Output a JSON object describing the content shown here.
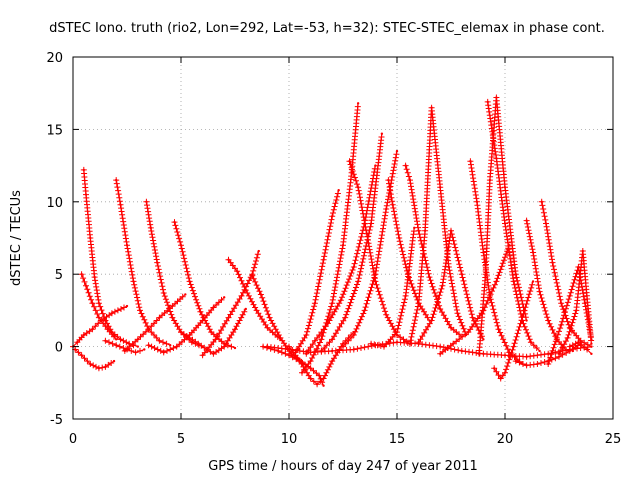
{
  "chart_data": {
    "type": "scatter",
    "title": "dSTEC Iono. truth (rio2, Lon=292, Lat=-53, h=32): STEC-STEC_elemax in phase cont.",
    "xlabel": "GPS time / hours of day 247 of year 2011",
    "ylabel": "dSTEC  / TECUs",
    "xlim": [
      0,
      25
    ],
    "ylim": [
      -5,
      20
    ],
    "xticks": [
      0,
      5,
      10,
      15,
      20,
      25
    ],
    "yticks": [
      -5,
      0,
      5,
      10,
      15,
      20
    ],
    "grid": true,
    "marker": "+",
    "color": "#ff0000",
    "series": [
      {
        "x": [
          0.0,
          0.2,
          0.5,
          0.9,
          1.3,
          1.8,
          2.5
        ],
        "y": [
          0.0,
          0.3,
          0.8,
          1.2,
          1.8,
          2.3,
          2.8
        ]
      },
      {
        "x": [
          0.1,
          0.4,
          0.8,
          1.2,
          1.5,
          1.9
        ],
        "y": [
          -0.2,
          -0.6,
          -1.2,
          -1.5,
          -1.4,
          -1.0
        ]
      },
      {
        "x": [
          0.4,
          0.6,
          0.9,
          1.2,
          1.6,
          2.0
        ],
        "y": [
          5.0,
          4.2,
          3.0,
          2.0,
          1.2,
          0.5
        ]
      },
      {
        "x": [
          0.5,
          0.6,
          0.8,
          1.0,
          1.2,
          1.5,
          1.8,
          2.2,
          2.6,
          3.0
        ],
        "y": [
          12.2,
          10.5,
          7.5,
          4.8,
          3.0,
          1.8,
          1.0,
          0.5,
          0.2,
          0.0
        ]
      },
      {
        "x": [
          1.5,
          2.0,
          2.5,
          2.9,
          3.3
        ],
        "y": [
          0.4,
          0.1,
          -0.2,
          -0.4,
          -0.2
        ]
      },
      {
        "x": [
          2.0,
          2.2,
          2.5,
          2.8,
          3.1,
          3.5,
          4.0,
          4.5
        ],
        "y": [
          11.5,
          9.8,
          7.0,
          4.5,
          2.5,
          1.2,
          0.4,
          0.1
        ]
      },
      {
        "x": [
          2.4,
          3.0,
          3.5,
          4.0,
          4.6,
          5.2
        ],
        "y": [
          -0.3,
          0.5,
          1.2,
          2.0,
          2.8,
          3.6
        ]
      },
      {
        "x": [
          3.4,
          3.6,
          3.9,
          4.2,
          4.6,
          5.0,
          5.5,
          6.0
        ],
        "y": [
          10.0,
          8.2,
          5.8,
          3.7,
          2.0,
          1.0,
          0.3,
          0.0
        ]
      },
      {
        "x": [
          3.5,
          4.2,
          4.8,
          5.4,
          6.0,
          6.5,
          7.0
        ],
        "y": [
          0.1,
          -0.4,
          0.0,
          0.8,
          1.8,
          2.7,
          3.4
        ]
      },
      {
        "x": [
          4.7,
          5.0,
          5.4,
          5.9,
          6.4,
          7.0,
          7.5
        ],
        "y": [
          8.6,
          7.0,
          4.5,
          2.4,
          1.0,
          0.2,
          -0.1
        ]
      },
      {
        "x": [
          5.0,
          5.8,
          6.5,
          7.0,
          7.5,
          8.0
        ],
        "y": [
          1.0,
          0.2,
          -0.5,
          0.0,
          1.2,
          2.6
        ]
      },
      {
        "x": [
          6.0,
          6.6,
          7.2,
          7.8,
          8.3,
          8.6
        ],
        "y": [
          -0.6,
          0.5,
          2.0,
          3.5,
          5.0,
          6.6
        ]
      },
      {
        "x": [
          7.2,
          7.6,
          8.0,
          8.5,
          9.0,
          9.6
        ],
        "y": [
          6.0,
          5.2,
          3.9,
          2.5,
          1.3,
          0.5
        ]
      },
      {
        "x": [
          8.3,
          8.7,
          9.1,
          9.6,
          10.1,
          10.7
        ],
        "y": [
          4.9,
          3.6,
          2.0,
          0.6,
          -0.5,
          -1.2
        ]
      },
      {
        "x": [
          8.8,
          9.5,
          10.0,
          10.5,
          11.0,
          11.4,
          11.6
        ],
        "y": [
          0.0,
          -0.3,
          -0.6,
          -1.0,
          -1.5,
          -2.0,
          -2.7
        ]
      },
      {
        "x": [
          10.0,
          10.5,
          11.0,
          11.3,
          11.6,
          12.0,
          12.5,
          13.0
        ],
        "y": [
          0.0,
          -1.0,
          -2.2,
          -2.6,
          -2.2,
          -1.0,
          0.2,
          1.0
        ]
      },
      {
        "x": [
          10.3,
          10.8,
          11.2,
          11.6,
          12.0,
          12.3
        ],
        "y": [
          -0.4,
          0.8,
          3.0,
          6.0,
          9.0,
          10.8
        ]
      },
      {
        "x": [
          10.6,
          11.0,
          11.5,
          12.0,
          12.5,
          12.9,
          13.2
        ],
        "y": [
          -1.8,
          -1.0,
          0.5,
          3.0,
          7.0,
          12.0,
          16.8
        ]
      },
      {
        "x": [
          10.8,
          11.2,
          11.8,
          12.4,
          13.0,
          13.5,
          14.0
        ],
        "y": [
          -0.5,
          0.4,
          1.6,
          3.2,
          5.5,
          8.5,
          12.5
        ]
      },
      {
        "x": [
          11.5,
          12.0,
          12.6,
          13.2,
          13.8,
          14.3
        ],
        "y": [
          -0.3,
          0.5,
          2.0,
          4.5,
          8.5,
          14.7
        ]
      },
      {
        "x": [
          12.5,
          13.0,
          13.5,
          14.0,
          14.5,
          15.0
        ],
        "y": [
          0.0,
          0.8,
          2.5,
          5.0,
          9.5,
          13.5
        ]
      },
      {
        "x": [
          12.8,
          13.2,
          13.6,
          14.0,
          14.5,
          15.0,
          15.6
        ],
        "y": [
          12.8,
          11.0,
          7.8,
          4.5,
          2.2,
          0.8,
          0.2
        ]
      },
      {
        "x": [
          13.8,
          14.4,
          15.0,
          15.4,
          15.8
        ],
        "y": [
          0.2,
          0.0,
          1.0,
          3.5,
          8.2
        ]
      },
      {
        "x": [
          14.6,
          14.8,
          15.1,
          15.5,
          16.0,
          16.5
        ],
        "y": [
          11.5,
          9.8,
          7.5,
          5.0,
          3.0,
          1.8
        ]
      },
      {
        "x": [
          15.4,
          15.6,
          16.0,
          16.5,
          17.0,
          17.5,
          18.0
        ],
        "y": [
          12.5,
          11.5,
          8.0,
          4.8,
          2.6,
          1.3,
          0.7
        ]
      },
      {
        "x": [
          15.6,
          16.0,
          16.3,
          16.6,
          17.0,
          17.4,
          17.8,
          18.2
        ],
        "y": [
          0.2,
          3.0,
          8.0,
          16.5,
          11.0,
          5.5,
          2.3,
          0.8
        ]
      },
      {
        "x": [
          16.0,
          16.6,
          17.1,
          17.5,
          18.0,
          18.5,
          19.0
        ],
        "y": [
          0.3,
          1.8,
          4.2,
          8.0,
          5.0,
          2.0,
          0.5
        ]
      },
      {
        "x": [
          17.0,
          17.6,
          18.3,
          19.0,
          19.6,
          20.2
        ],
        "y": [
          -0.5,
          0.2,
          1.0,
          2.5,
          4.5,
          7.0
        ]
      },
      {
        "x": [
          18.4,
          18.7,
          19.0,
          19.3,
          19.7,
          20.2,
          20.8
        ],
        "y": [
          12.8,
          10.0,
          6.5,
          3.5,
          1.2,
          -0.4,
          -1.2
        ]
      },
      {
        "x": [
          18.8,
          19.1,
          19.3,
          19.6,
          20.0,
          20.5,
          21.0
        ],
        "y": [
          -0.5,
          5.0,
          11.5,
          17.2,
          11.0,
          5.0,
          1.8
        ]
      },
      {
        "x": [
          19.2,
          19.6,
          20.0,
          20.4,
          20.8,
          21.2,
          21.6
        ],
        "y": [
          16.9,
          13.0,
          8.5,
          4.5,
          1.8,
          0.3,
          -0.3
        ]
      },
      {
        "x": [
          19.5,
          19.8,
          20.0,
          20.4,
          20.9,
          21.3
        ],
        "y": [
          -1.5,
          -2.2,
          -1.8,
          0.0,
          2.5,
          4.5
        ]
      },
      {
        "x": [
          20.5,
          21.0,
          21.5,
          22.0,
          22.5,
          23.0,
          23.5
        ],
        "y": [
          -1.0,
          -1.3,
          -1.2,
          -1.0,
          -0.7,
          -0.3,
          0.2
        ]
      },
      {
        "x": [
          21.0,
          21.3,
          21.6,
          22.0,
          22.4,
          22.8
        ],
        "y": [
          8.7,
          6.5,
          3.8,
          1.8,
          0.5,
          -0.2
        ]
      },
      {
        "x": [
          21.7,
          21.9,
          22.2,
          22.6,
          23.0,
          23.5,
          24.0
        ],
        "y": [
          10.0,
          8.5,
          5.8,
          3.0,
          1.3,
          0.4,
          0.0
        ]
      },
      {
        "x": [
          22.0,
          22.6,
          23.0,
          23.4,
          23.7,
          24.0
        ],
        "y": [
          -1.2,
          1.5,
          3.5,
          5.5,
          3.0,
          0.5
        ]
      },
      {
        "x": [
          22.5,
          22.9,
          23.3,
          23.6,
          24.0
        ],
        "y": [
          -0.5,
          0.6,
          2.5,
          6.6,
          0.2
        ]
      },
      {
        "x": [
          23.0,
          23.4,
          23.8,
          24.0
        ],
        "y": [
          0.0,
          0.3,
          -0.2,
          -0.5
        ]
      },
      {
        "x": [
          9.0,
          10.0,
          11.0,
          12.0,
          13.0,
          14.0,
          15.0,
          16.0,
          17.0,
          18.0,
          19.0,
          20.0,
          21.0,
          22.0,
          23.0,
          24.0
        ],
        "y": [
          0.0,
          -0.2,
          -0.4,
          -0.3,
          -0.2,
          0.1,
          0.3,
          0.2,
          0.0,
          -0.3,
          -0.5,
          -0.6,
          -0.7,
          -0.5,
          -0.2,
          0.0
        ]
      }
    ]
  }
}
